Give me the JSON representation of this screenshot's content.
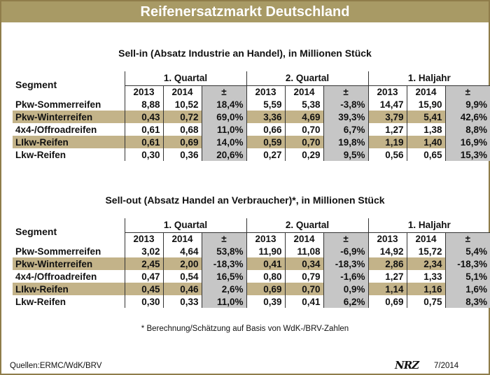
{
  "title": "Reifenersatzmarkt Deutschland",
  "headers": {
    "segment": "Segment",
    "q1": "1. Quartal",
    "q2": "2. Quartal",
    "h1": "1. Haljahr",
    "y1": "2013",
    "y2": "2014",
    "pm": "±"
  },
  "sellin": {
    "title": "Sell-in (Absatz Industrie an Handel), in Millionen Stück",
    "rows": [
      {
        "segment": "Pkw-Sommerreifen",
        "vals": [
          "8,88",
          "10,52",
          "18,4%",
          "5,59",
          "5,38",
          "-3,8%",
          "14,47",
          "15,90",
          "9,9%"
        ]
      },
      {
        "segment": "Pkw-Winterreifen",
        "vals": [
          "0,43",
          "0,72",
          "69,0%",
          "3,36",
          "4,69",
          "39,3%",
          "3,79",
          "5,41",
          "42,6%"
        ]
      },
      {
        "segment": "4x4-/Offroadreifen",
        "vals": [
          "0,61",
          "0,68",
          "11,0%",
          "0,66",
          "0,70",
          "6,7%",
          "1,27",
          "1,38",
          "8,8%"
        ]
      },
      {
        "segment": "LIkw-Reifen",
        "vals": [
          "0,61",
          "0,69",
          "14,0%",
          "0,59",
          "0,70",
          "19,8%",
          "1,19",
          "1,40",
          "16,9%"
        ]
      },
      {
        "segment": "Lkw-Reifen",
        "vals": [
          "0,30",
          "0,36",
          "20,6%",
          "0,27",
          "0,29",
          "9,5%",
          "0,56",
          "0,65",
          "15,3%"
        ]
      }
    ]
  },
  "sellout": {
    "title": "Sell-out (Absatz Handel an Verbraucher)*, in Millionen Stück",
    "rows": [
      {
        "segment": "Pkw-Sommerreifen",
        "vals": [
          "3,02",
          "4,64",
          "53,8%",
          "11,90",
          "11,08",
          "-6,9%",
          "14,92",
          "15,72",
          "5,4%"
        ]
      },
      {
        "segment": "Pkw-Winterreifen",
        "vals": [
          "2,45",
          "2,00",
          "-18,3%",
          "0,41",
          "0,34",
          "-18,3%",
          "2,86",
          "2,34",
          "-18,3%"
        ]
      },
      {
        "segment": "4x4-/Offroadreifen",
        "vals": [
          "0,47",
          "0,54",
          "16,5%",
          "0,80",
          "0,79",
          "-1,6%",
          "1,27",
          "1,33",
          "5,1%"
        ]
      },
      {
        "segment": "LIkw-Reifen",
        "vals": [
          "0,45",
          "0,46",
          "2,6%",
          "0,69",
          "0,70",
          "0,9%",
          "1,14",
          "1,16",
          "1,6%"
        ]
      },
      {
        "segment": "Lkw-Reifen",
        "vals": [
          "0,30",
          "0,33",
          "11,0%",
          "0,39",
          "0,41",
          "6,2%",
          "0,69",
          "0,75",
          "8,3%"
        ]
      }
    ]
  },
  "footnote": "* Berechnung/Schätzung auf Basis von WdK-/BRV-Zahlen",
  "sources": "Quellen:ERMC/WdK/BRV",
  "logo": "NRZ",
  "date": "7/2014",
  "colors": {
    "title_bar": "#a89a65",
    "highlight_row": "#c3b389",
    "pm_column": "#c6c6c6",
    "border": "#8f7d4a"
  }
}
